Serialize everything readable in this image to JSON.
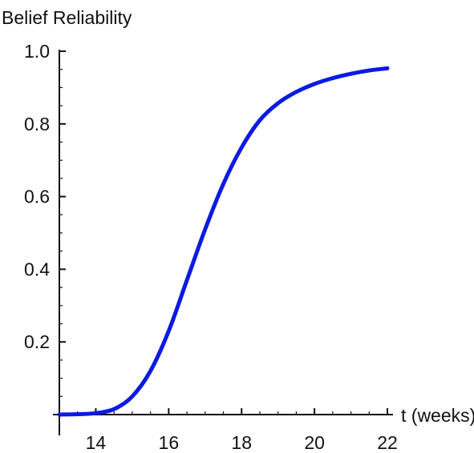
{
  "chart_data": {
    "type": "line",
    "title": "",
    "xlabel": "t (weeks)",
    "ylabel": "Belief Reliability",
    "xlim": [
      13,
      22
    ],
    "ylim": [
      0,
      1.0
    ],
    "x_ticks": [
      14,
      16,
      18,
      20,
      22
    ],
    "x_tick_labels": [
      "14",
      "16",
      "18",
      "20",
      "22"
    ],
    "y_ticks": [
      0.2,
      0.4,
      0.6,
      0.8,
      1.0
    ],
    "y_tick_labels": [
      "0.2",
      "0.4",
      "0.6",
      "0.8",
      "1.0"
    ],
    "grid": false,
    "series": [
      {
        "color": "#0b1be0",
        "x": [
          13,
          13.5,
          14,
          14.5,
          15,
          15.5,
          16,
          16.5,
          17,
          17.5,
          18,
          18.5,
          19,
          19.5,
          20,
          20.5,
          21,
          21.5,
          22
        ],
        "y": [
          0.0,
          0.001,
          0.004,
          0.015,
          0.05,
          0.12,
          0.23,
          0.37,
          0.51,
          0.635,
          0.735,
          0.81,
          0.857,
          0.888,
          0.91,
          0.926,
          0.938,
          0.947,
          0.953
        ]
      }
    ]
  }
}
